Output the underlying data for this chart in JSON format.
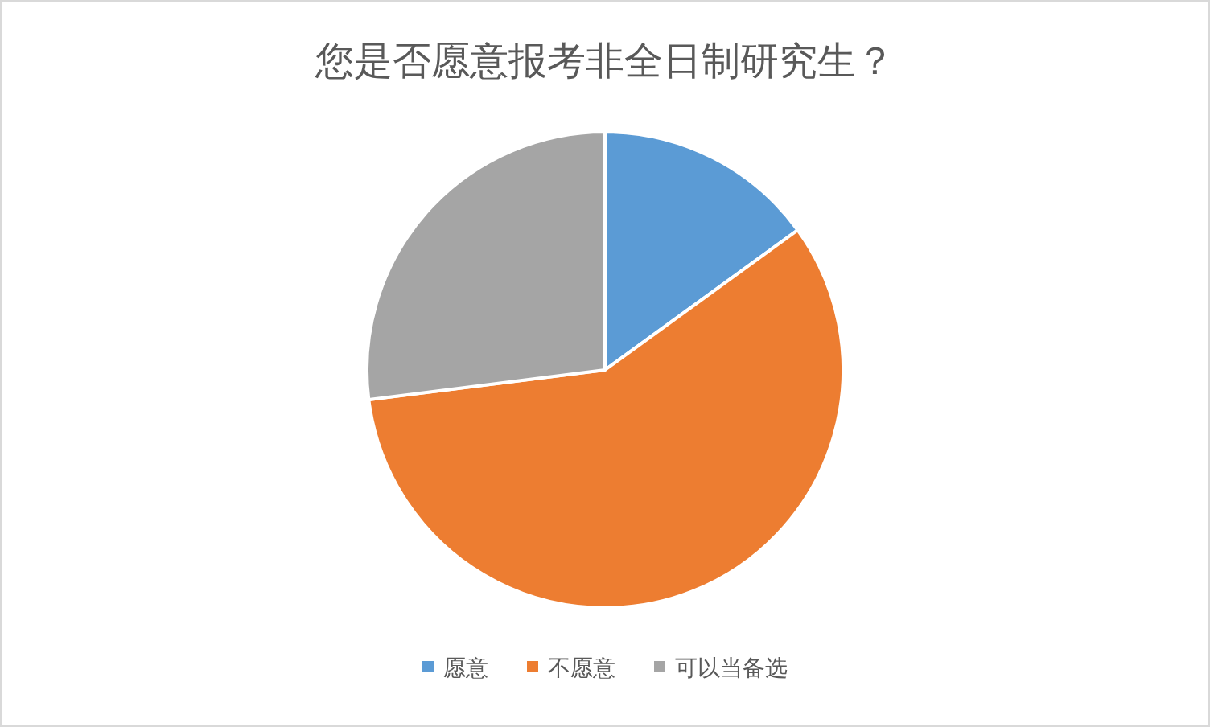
{
  "chart_data": {
    "type": "pie",
    "title": "您是否愿意报考非全日制研究生？",
    "categories": [
      "愿意",
      "不愿意",
      "可以当备选"
    ],
    "values": [
      15,
      58,
      27
    ],
    "colors": [
      "#5b9bd5",
      "#ed7d31",
      "#a5a5a5"
    ],
    "legend": "bottom"
  }
}
